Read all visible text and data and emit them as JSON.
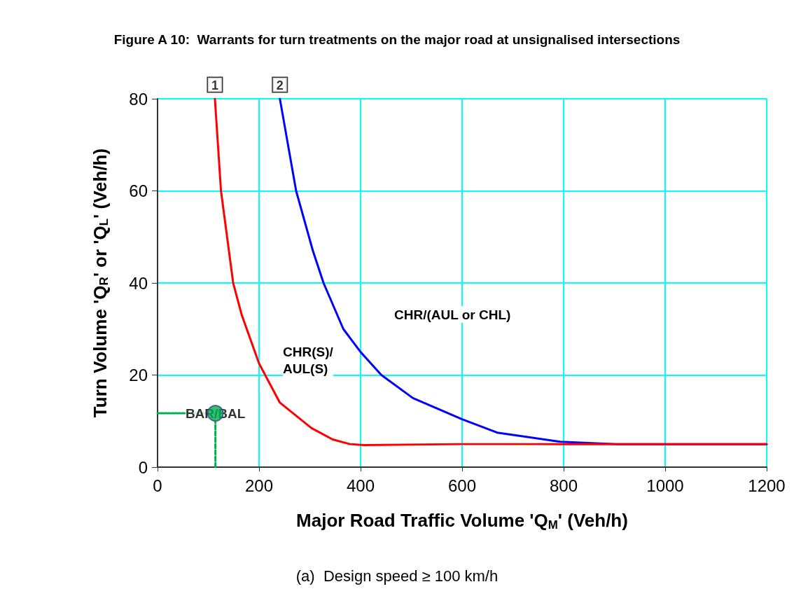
{
  "chart_data": {
    "type": "line",
    "title": "Figure A 10:  Warrants for turn treatments on the major road at unsignalised intersections",
    "xlabel": "Major Road Traffic Volume 'Q$_{M}$' (Veh/h)",
    "ylabel": "Turn Volume 'Q$_{R}$' or 'Q$_{L}$' (Veh/h)",
    "xlim": [
      0,
      1200
    ],
    "xticks": [
      0,
      200,
      400,
      600,
      800,
      1000,
      1200
    ],
    "ylim": [
      0,
      80
    ],
    "yticks": [
      0,
      20,
      40,
      60,
      80
    ],
    "grid": true,
    "line_style": "solid",
    "series": [
      {
        "color": "#ff0000",
        "x": [
          113,
          125,
          149,
          166,
          200,
          241,
          303,
          345,
          379,
          407,
          600,
          800,
          1000,
          1200
        ],
        "values": [
          80,
          60,
          40,
          33,
          22.5,
          14,
          8.5,
          6,
          5,
          4.8,
          5,
          5,
          5,
          5
        ],
        "marker": "none"
      },
      {
        "color": "#0000ff",
        "x": [
          241,
          273,
          306,
          327,
          366,
          400,
          441,
          503,
          600,
          669,
          793,
          903,
          1000,
          1200
        ],
        "values": [
          80,
          60,
          47,
          40,
          30,
          25,
          20,
          15,
          10.4,
          7.5,
          5.5,
          5,
          5,
          5
        ],
        "marker": "none"
      },
      {
        "color": "#00b050",
        "x": [
          0,
          114
        ],
        "values": [
          11.7,
          11.7
        ],
        "line_style": "dotted",
        "marker": "none"
      },
      {
        "color": "#00b050",
        "x": [
          114,
          114
        ],
        "values": [
          0,
          11.7
        ],
        "line_style": "dashed",
        "marker": "none"
      },
      {
        "type": "scatter",
        "color": "#00b050",
        "x": [
          114
        ],
        "values": [
          11.7
        ],
        "marker": "circle"
      }
    ],
    "annotations": [
      {
        "text": "1",
        "x": 113,
        "y": 80
      },
      {
        "text": "2",
        "x": 241,
        "y": 80
      },
      {
        "text": "BAR/BAL",
        "x": 114,
        "y": 11.7
      },
      "CHR(S)/\nAUL(S)",
      "CHR/(AUL or CHL)",
      "(a)  Design speed ≥ 100 km/h"
    ]
  }
}
